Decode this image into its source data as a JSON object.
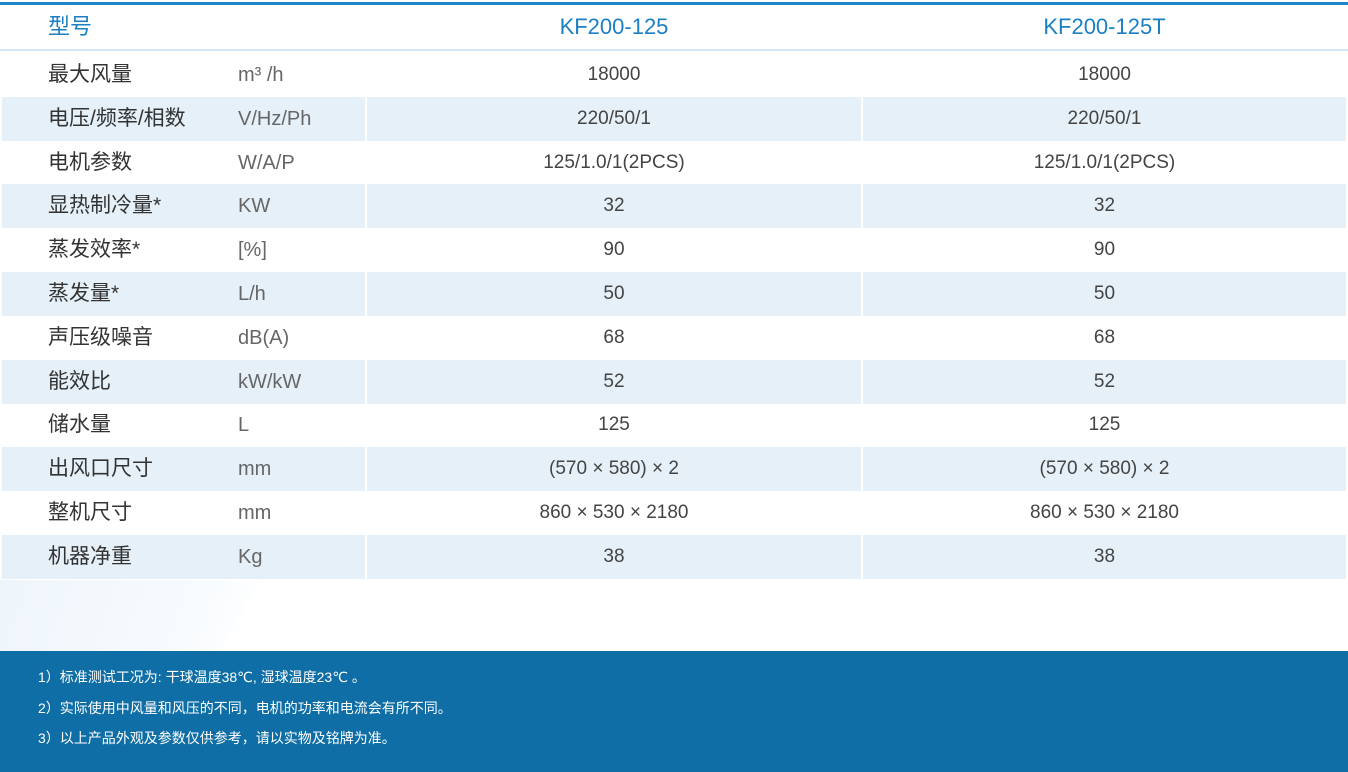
{
  "table": {
    "header": {
      "label": "型号",
      "models": [
        "KF200-125",
        "KF200-125T"
      ]
    },
    "rows": [
      [
        "最大风量",
        "m³ /h",
        "18000",
        "18000"
      ],
      [
        "电压/频率/相数",
        "V/Hz/Ph",
        "220/50/1",
        "220/50/1"
      ],
      [
        "电机参数",
        "W/A/P",
        "125/1.0/1(2PCS)",
        "125/1.0/1(2PCS)"
      ],
      [
        "显热制冷量*",
        "KW",
        "32",
        "32"
      ],
      [
        "蒸发效率*",
        "[%]",
        "90",
        "90"
      ],
      [
        "蒸发量*",
        "L/h",
        "50",
        "50"
      ],
      [
        "声压级噪音",
        "dB(A)",
        "68",
        "68"
      ],
      [
        "能效比",
        "kW/kW",
        "52",
        "52"
      ],
      [
        "储水量",
        "L",
        "125",
        "125"
      ],
      [
        "出风口尺寸",
        "mm",
        "(570 × 580) × 2",
        "(570 × 580) × 2"
      ],
      [
        "整机尺寸",
        "mm",
        "860 × 530 × 2180",
        "860 × 530 × 2180"
      ],
      [
        "机器净重",
        "Kg",
        "38",
        "38"
      ]
    ]
  },
  "notes": [
    "1）标准测试工况为: 干球温度38℃, 湿球温度23℃ 。",
    "2）实际使用中风量和风压的不同，电机的功率和电流会有所不同。",
    "3）以上产品外观及参数仅供参考，请以实物及铭牌为准。"
  ]
}
